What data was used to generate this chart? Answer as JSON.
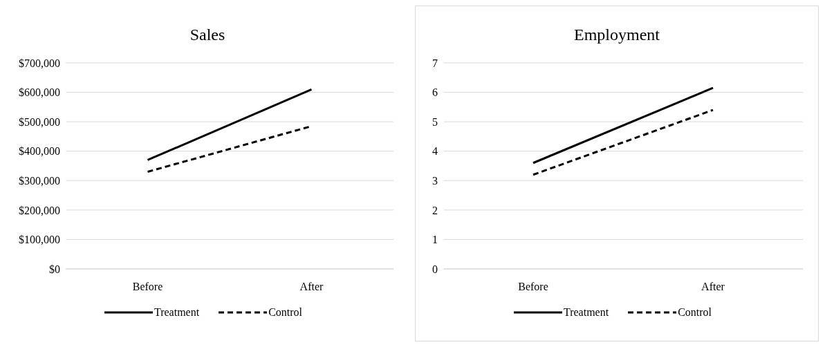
{
  "chart_data": [
    {
      "type": "line",
      "title": "Sales",
      "categories": [
        "Before",
        "After"
      ],
      "series": [
        {
          "name": "Treatment",
          "color": "#000000",
          "line_style": "solid",
          "values": [
            370000,
            610000
          ]
        },
        {
          "name": "Control",
          "color": "#000000",
          "line_style": "dashed",
          "values": [
            330000,
            485000
          ]
        }
      ],
      "ylim": [
        0,
        700000
      ],
      "yticks": [
        {
          "value": 0,
          "label": "$0"
        },
        {
          "value": 100000,
          "label": "$100,000"
        },
        {
          "value": 200000,
          "label": "$200,000"
        },
        {
          "value": 300000,
          "label": "$300,000"
        },
        {
          "value": 400000,
          "label": "$400,000"
        },
        {
          "value": 500000,
          "label": "$500,000"
        },
        {
          "value": 600000,
          "label": "$600,000"
        },
        {
          "value": 700000,
          "label": "$700,000"
        }
      ],
      "grid": "y",
      "legend": "bottom",
      "marker": "none"
    },
    {
      "type": "line",
      "title": "Employment",
      "categories": [
        "Before",
        "After"
      ],
      "series": [
        {
          "name": "Treatment",
          "color": "#000000",
          "line_style": "solid",
          "values": [
            3.6,
            6.15
          ]
        },
        {
          "name": "Control",
          "color": "#000000",
          "line_style": "dashed",
          "values": [
            3.2,
            5.4
          ]
        }
      ],
      "ylim": [
        0,
        7
      ],
      "yticks": [
        0,
        1,
        2,
        3,
        4,
        5,
        6,
        7
      ],
      "grid": "y",
      "legend": "bottom",
      "marker": "none"
    }
  ]
}
